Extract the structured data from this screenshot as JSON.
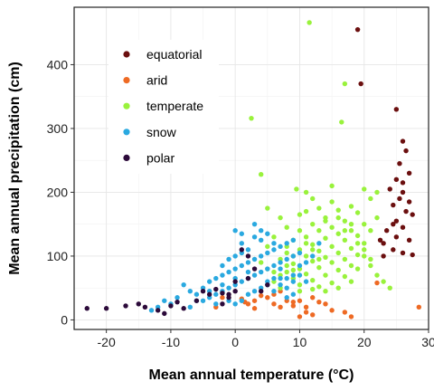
{
  "chart_data": {
    "type": "scatter",
    "title": "",
    "xlabel": "Mean annual temperature (°C)",
    "ylabel": "Mean annual precipitation (cm)",
    "xlim": [
      -25,
      30
    ],
    "ylim": [
      -15,
      490
    ],
    "x_ticks": [
      -20,
      -10,
      0,
      10,
      20,
      30
    ],
    "x_tick_labels": [
      "-20",
      "-10",
      "0",
      "10",
      "20",
      "30"
    ],
    "y_ticks": [
      0,
      100,
      200,
      300,
      400
    ],
    "y_tick_labels": [
      "0",
      "100",
      "200",
      "300",
      "400"
    ],
    "grid": true,
    "legend_position": "top-left, inside plot",
    "series": [
      {
        "name": "equatorial",
        "color": "#6b0f0f",
        "points": [
          [
            19,
            455
          ],
          [
            19.5,
            370
          ],
          [
            25,
            330
          ],
          [
            26,
            280
          ],
          [
            26.5,
            265
          ],
          [
            25.5,
            245
          ],
          [
            27,
            230
          ],
          [
            25,
            220
          ],
          [
            26,
            215
          ],
          [
            24,
            205
          ],
          [
            26,
            200
          ],
          [
            25.5,
            190
          ],
          [
            27,
            185
          ],
          [
            24.5,
            180
          ],
          [
            26.5,
            170
          ],
          [
            27.5,
            165
          ],
          [
            25,
            155
          ],
          [
            24.5,
            150
          ],
          [
            26,
            145
          ],
          [
            23.5,
            140
          ],
          [
            25,
            130
          ],
          [
            27,
            125
          ],
          [
            23,
            120
          ],
          [
            24.5,
            110
          ],
          [
            26,
            105
          ],
          [
            27.5,
            102
          ],
          [
            22.5,
            125
          ],
          [
            23,
            100
          ]
        ]
      },
      {
        "name": "arid",
        "color": "#ee6a24",
        "points": [
          [
            28.5,
            20
          ],
          [
            22,
            58
          ],
          [
            12,
            8
          ],
          [
            10,
            5
          ],
          [
            15,
            15
          ],
          [
            17,
            12
          ],
          [
            18,
            5
          ],
          [
            8,
            30
          ],
          [
            9,
            28
          ],
          [
            6,
            40
          ],
          [
            5,
            35
          ],
          [
            4,
            38
          ],
          [
            3,
            30
          ],
          [
            2,
            25
          ],
          [
            1.5,
            28
          ],
          [
            -3,
            20
          ],
          [
            -2,
            35
          ],
          [
            7,
            45
          ],
          [
            11,
            20
          ],
          [
            13,
            28
          ],
          [
            14,
            25
          ],
          [
            11,
            12
          ],
          [
            9,
            22
          ],
          [
            6,
            25
          ],
          [
            7,
            20
          ],
          [
            1,
            33
          ],
          [
            3,
            18
          ],
          [
            10,
            30
          ],
          [
            12,
            35
          ]
        ]
      },
      {
        "name": "temperate",
        "color": "#99f23c",
        "points": [
          [
            11.5,
            466
          ],
          [
            17,
            370
          ],
          [
            2.5,
            316
          ],
          [
            16.5,
            310
          ],
          [
            4,
            228
          ],
          [
            15,
            210
          ],
          [
            20,
            205
          ],
          [
            22,
            200
          ],
          [
            9.5,
            205
          ],
          [
            11,
            200
          ],
          [
            5,
            175
          ],
          [
            18,
            178
          ],
          [
            21,
            190
          ],
          [
            16,
            172
          ],
          [
            19,
            168
          ],
          [
            10,
            165
          ],
          [
            14,
            160
          ],
          [
            17,
            155
          ],
          [
            20,
            150
          ],
          [
            12,
            150
          ],
          [
            15,
            145
          ],
          [
            8,
            145
          ],
          [
            18,
            140
          ],
          [
            13,
            140
          ],
          [
            16,
            135
          ],
          [
            19,
            132
          ],
          [
            11,
            130
          ],
          [
            14,
            128
          ],
          [
            9,
            125
          ],
          [
            17,
            125
          ],
          [
            20,
            120
          ],
          [
            12,
            118
          ],
          [
            15,
            115
          ],
          [
            18,
            112
          ],
          [
            10,
            110
          ],
          [
            13,
            108
          ],
          [
            16,
            105
          ],
          [
            8,
            105
          ],
          [
            19,
            102
          ],
          [
            11,
            100
          ],
          [
            14,
            98
          ],
          [
            17,
            95
          ],
          [
            7,
            95
          ],
          [
            12,
            92
          ],
          [
            15,
            90
          ],
          [
            9,
            88
          ],
          [
            18,
            85
          ],
          [
            13,
            82
          ],
          [
            10,
            80
          ],
          [
            16,
            78
          ],
          [
            8,
            75
          ],
          [
            11,
            72
          ],
          [
            14,
            70
          ],
          [
            17,
            68
          ],
          [
            9,
            65
          ],
          [
            12,
            62
          ],
          [
            6,
            60
          ],
          [
            15,
            58
          ],
          [
            10,
            55
          ],
          [
            13,
            52
          ],
          [
            7,
            50
          ],
          [
            20,
            110
          ],
          [
            21,
            85
          ],
          [
            22,
            70
          ],
          [
            23,
            60
          ],
          [
            24,
            50
          ],
          [
            21,
            140
          ],
          [
            22,
            160
          ],
          [
            6,
            130
          ],
          [
            5,
            115
          ],
          [
            7,
            160
          ],
          [
            4,
            90
          ],
          [
            19,
            80
          ],
          [
            18,
            60
          ],
          [
            16,
            50
          ],
          [
            14,
            45
          ],
          [
            12,
            48
          ],
          [
            10,
            45
          ],
          [
            9,
            100
          ],
          [
            8,
            115
          ],
          [
            13,
            175
          ],
          [
            15,
            185
          ],
          [
            12,
            190
          ],
          [
            11,
            170
          ],
          [
            14,
            155
          ],
          [
            16,
            160
          ],
          [
            17,
            140
          ],
          [
            18,
            150
          ],
          [
            19,
            120
          ],
          [
            20,
            100
          ],
          [
            21,
            95
          ],
          [
            10,
            140
          ],
          [
            11,
            120
          ],
          [
            12,
            110
          ],
          [
            13,
            95
          ],
          [
            9,
            78
          ],
          [
            8,
            85
          ],
          [
            7,
            70
          ],
          [
            6,
            75
          ],
          [
            5,
            80
          ]
        ]
      },
      {
        "name": "snow",
        "color": "#2aa9e0",
        "points": [
          [
            -8,
            55
          ],
          [
            -7,
            45
          ],
          [
            -6,
            40
          ],
          [
            -5,
            50
          ],
          [
            -4,
            60
          ],
          [
            -3,
            65
          ],
          [
            -2,
            70
          ],
          [
            -1,
            75
          ],
          [
            0,
            80
          ],
          [
            1,
            85
          ],
          [
            2,
            90
          ],
          [
            3,
            95
          ],
          [
            4,
            100
          ],
          [
            5,
            105
          ],
          [
            6,
            110
          ],
          [
            7,
            115
          ],
          [
            8,
            120
          ],
          [
            9,
            125
          ],
          [
            -5,
            30
          ],
          [
            -4,
            35
          ],
          [
            -3,
            40
          ],
          [
            -2,
            45
          ],
          [
            -1,
            50
          ],
          [
            0,
            55
          ],
          [
            1,
            60
          ],
          [
            2,
            65
          ],
          [
            3,
            70
          ],
          [
            4,
            75
          ],
          [
            5,
            80
          ],
          [
            6,
            85
          ],
          [
            7,
            90
          ],
          [
            8,
            95
          ],
          [
            9,
            100
          ],
          [
            10,
            105
          ],
          [
            0,
            140
          ],
          [
            1,
            135
          ],
          [
            3,
            130
          ],
          [
            6,
            120
          ],
          [
            4,
            125
          ],
          [
            2,
            110
          ],
          [
            -1,
            95
          ],
          [
            0,
            100
          ],
          [
            1,
            105
          ],
          [
            -2,
            85
          ],
          [
            5,
            60
          ],
          [
            6,
            65
          ],
          [
            7,
            55
          ],
          [
            8,
            50
          ],
          [
            9,
            60
          ],
          [
            10,
            70
          ],
          [
            11,
            90
          ],
          [
            12,
            100
          ],
          [
            13,
            120
          ],
          [
            9,
            40
          ],
          [
            8,
            35
          ],
          [
            -10,
            25
          ],
          [
            -11,
            30
          ],
          [
            -12,
            20
          ],
          [
            -13,
            15
          ],
          [
            -9,
            35
          ],
          [
            -6,
            30
          ],
          [
            -3,
            25
          ],
          [
            -1,
            30
          ],
          [
            2,
            40
          ],
          [
            3,
            45
          ],
          [
            4,
            50
          ],
          [
            5,
            55
          ],
          [
            6,
            45
          ],
          [
            7,
            65
          ],
          [
            0,
            25
          ],
          [
            1,
            30
          ],
          [
            -7,
            20
          ],
          [
            4,
            140
          ],
          [
            5,
            135
          ],
          [
            3,
            150
          ],
          [
            0,
            65
          ],
          [
            2,
            75
          ],
          [
            -2,
            55
          ],
          [
            -4,
            45
          ],
          [
            1,
            120
          ],
          [
            7,
            80
          ],
          [
            8,
            65
          ],
          [
            9,
            70
          ],
          [
            10,
            85
          ],
          [
            11,
            60
          ]
        ]
      },
      {
        "name": "polar",
        "color": "#2c0a3a",
        "points": [
          [
            -23,
            18
          ],
          [
            -20,
            18
          ],
          [
            -17,
            22
          ],
          [
            -15,
            25
          ],
          [
            -14,
            20
          ],
          [
            -12,
            15
          ],
          [
            -11,
            10
          ],
          [
            -10,
            22
          ],
          [
            -9,
            28
          ],
          [
            -8,
            18
          ],
          [
            -6,
            30
          ],
          [
            -5,
            45
          ],
          [
            -4,
            40
          ],
          [
            -3,
            48
          ],
          [
            -2,
            25
          ],
          [
            -1,
            40
          ],
          [
            0,
            60
          ],
          [
            1,
            110
          ],
          [
            2,
            100
          ],
          [
            2,
            65
          ],
          [
            3,
            80
          ],
          [
            4,
            45
          ],
          [
            5,
            55
          ],
          [
            0,
            45
          ],
          [
            -2,
            42
          ],
          [
            -1,
            35
          ]
        ]
      }
    ]
  }
}
